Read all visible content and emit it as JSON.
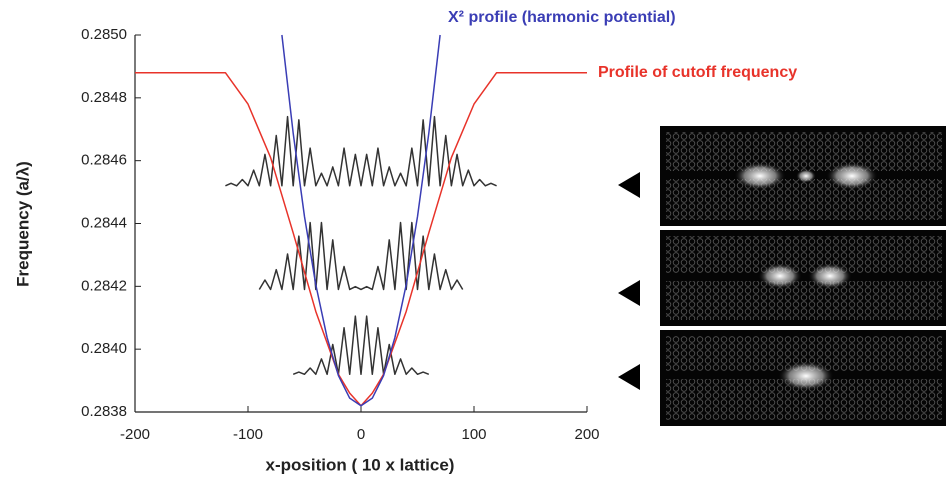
{
  "chart_data": {
    "type": "line",
    "x_label": "x-position ( 10 x lattice)",
    "y_label": "Frequency (a/λ)",
    "xlim": [
      -200,
      200
    ],
    "xticks": [
      -200,
      -100,
      0,
      100,
      200
    ],
    "ylim": [
      0.2838,
      0.285
    ],
    "yticks": [
      0.2838,
      {
        "value": 0.284,
        "label": "0.2840"
      },
      0.2842,
      0.2844,
      0.2846,
      0.2848,
      {
        "value": 0.285,
        "label": "0.2850"
      }
    ],
    "series": [
      {
        "name": "X² profile (harmonic potential)",
        "color": "#3a3db5",
        "x": [
          -70,
          -60,
          -50,
          -40,
          -30,
          -20,
          -10,
          0,
          10,
          20,
          30,
          40,
          50,
          60,
          70
        ],
        "values": [
          0.285,
          0.284687,
          0.284422,
          0.284205,
          0.284037,
          0.283916,
          0.283844,
          0.28382,
          0.283844,
          0.283916,
          0.284037,
          0.284205,
          0.284422,
          0.284687,
          0.285
        ]
      },
      {
        "name": "Profile of cutoff frequency",
        "color": "#e8332a",
        "x": [
          -200,
          -120,
          -100,
          -80,
          -60,
          -40,
          -20,
          -10,
          0,
          10,
          20,
          40,
          60,
          80,
          100,
          120,
          200
        ],
        "values": [
          0.28488,
          0.28488,
          0.28478,
          0.28461,
          0.28437,
          0.28412,
          0.28392,
          0.28386,
          0.28382,
          0.28386,
          0.28392,
          0.28412,
          0.28437,
          0.28461,
          0.28478,
          0.28488,
          0.28488
        ]
      },
      {
        "color": "#333333",
        "x": [
          -120,
          -115,
          -110,
          -105,
          -100,
          -95,
          -90,
          -85,
          -80,
          -75,
          -70,
          -65,
          -60,
          -55,
          -50,
          -45,
          -40,
          -35,
          -30,
          -25,
          -20,
          -15,
          -10,
          -5,
          0,
          5,
          10,
          15,
          20,
          25,
          30,
          35,
          40,
          45,
          50,
          55,
          60,
          65,
          70,
          75,
          80,
          85,
          90,
          95,
          100,
          105,
          110,
          115,
          120
        ],
        "values": [
          0.28452,
          0.284528,
          0.28452,
          0.28454,
          0.28452,
          0.28457,
          0.28452,
          0.28462,
          0.28452,
          0.28468,
          0.28452,
          0.28474,
          0.28452,
          0.28473,
          0.28452,
          0.28464,
          0.28452,
          0.28456,
          0.28452,
          0.28458,
          0.28452,
          0.28464,
          0.28452,
          0.28462,
          0.28452,
          0.28462,
          0.28452,
          0.28464,
          0.28452,
          0.28458,
          0.28452,
          0.28456,
          0.28452,
          0.28464,
          0.28452,
          0.28473,
          0.28452,
          0.28474,
          0.28452,
          0.28468,
          0.28452,
          0.28462,
          0.28452,
          0.28457,
          0.28452,
          0.28454,
          0.28452,
          0.284528,
          0.28452
        ]
      },
      {
        "color": "#333333",
        "x": [
          -90,
          -85,
          -80,
          -75,
          -70,
          -65,
          -60,
          -55,
          -50,
          -45,
          -40,
          -35,
          -30,
          -25,
          -20,
          -15,
          -10,
          -5,
          0,
          5,
          10,
          15,
          20,
          25,
          30,
          35,
          40,
          45,
          50,
          55,
          60,
          65,
          70,
          75,
          80,
          85,
          90
        ],
        "values": [
          0.28419,
          0.28422,
          0.28419,
          0.284253,
          0.28419,
          0.284303,
          0.28419,
          0.28436,
          0.28419,
          0.284403,
          0.28419,
          0.284403,
          0.28419,
          0.284348,
          0.28419,
          0.284263,
          0.28419,
          0.284199,
          0.28419,
          0.284199,
          0.28419,
          0.284263,
          0.28419,
          0.284348,
          0.28419,
          0.284403,
          0.28419,
          0.284403,
          0.28419,
          0.28436,
          0.28419,
          0.284303,
          0.28419,
          0.284253,
          0.28419,
          0.28422,
          0.28419
        ]
      },
      {
        "color": "#333333",
        "x": [
          -60,
          -55,
          -50,
          -45,
          -40,
          -35,
          -30,
          -25,
          -20,
          -15,
          -10,
          -5,
          0,
          5,
          10,
          15,
          20,
          25,
          30,
          35,
          40,
          45,
          50,
          55,
          60
        ],
        "values": [
          0.28392,
          0.283927,
          0.28392,
          0.28394,
          0.28392,
          0.283969,
          0.28392,
          0.284015,
          0.28392,
          0.284068,
          0.28392,
          0.284105,
          0.28392,
          0.284105,
          0.28392,
          0.284068,
          0.28392,
          0.284015,
          0.28392,
          0.283969,
          0.28392,
          0.28394,
          0.28392,
          0.283927,
          0.28392
        ]
      }
    ]
  }
}
